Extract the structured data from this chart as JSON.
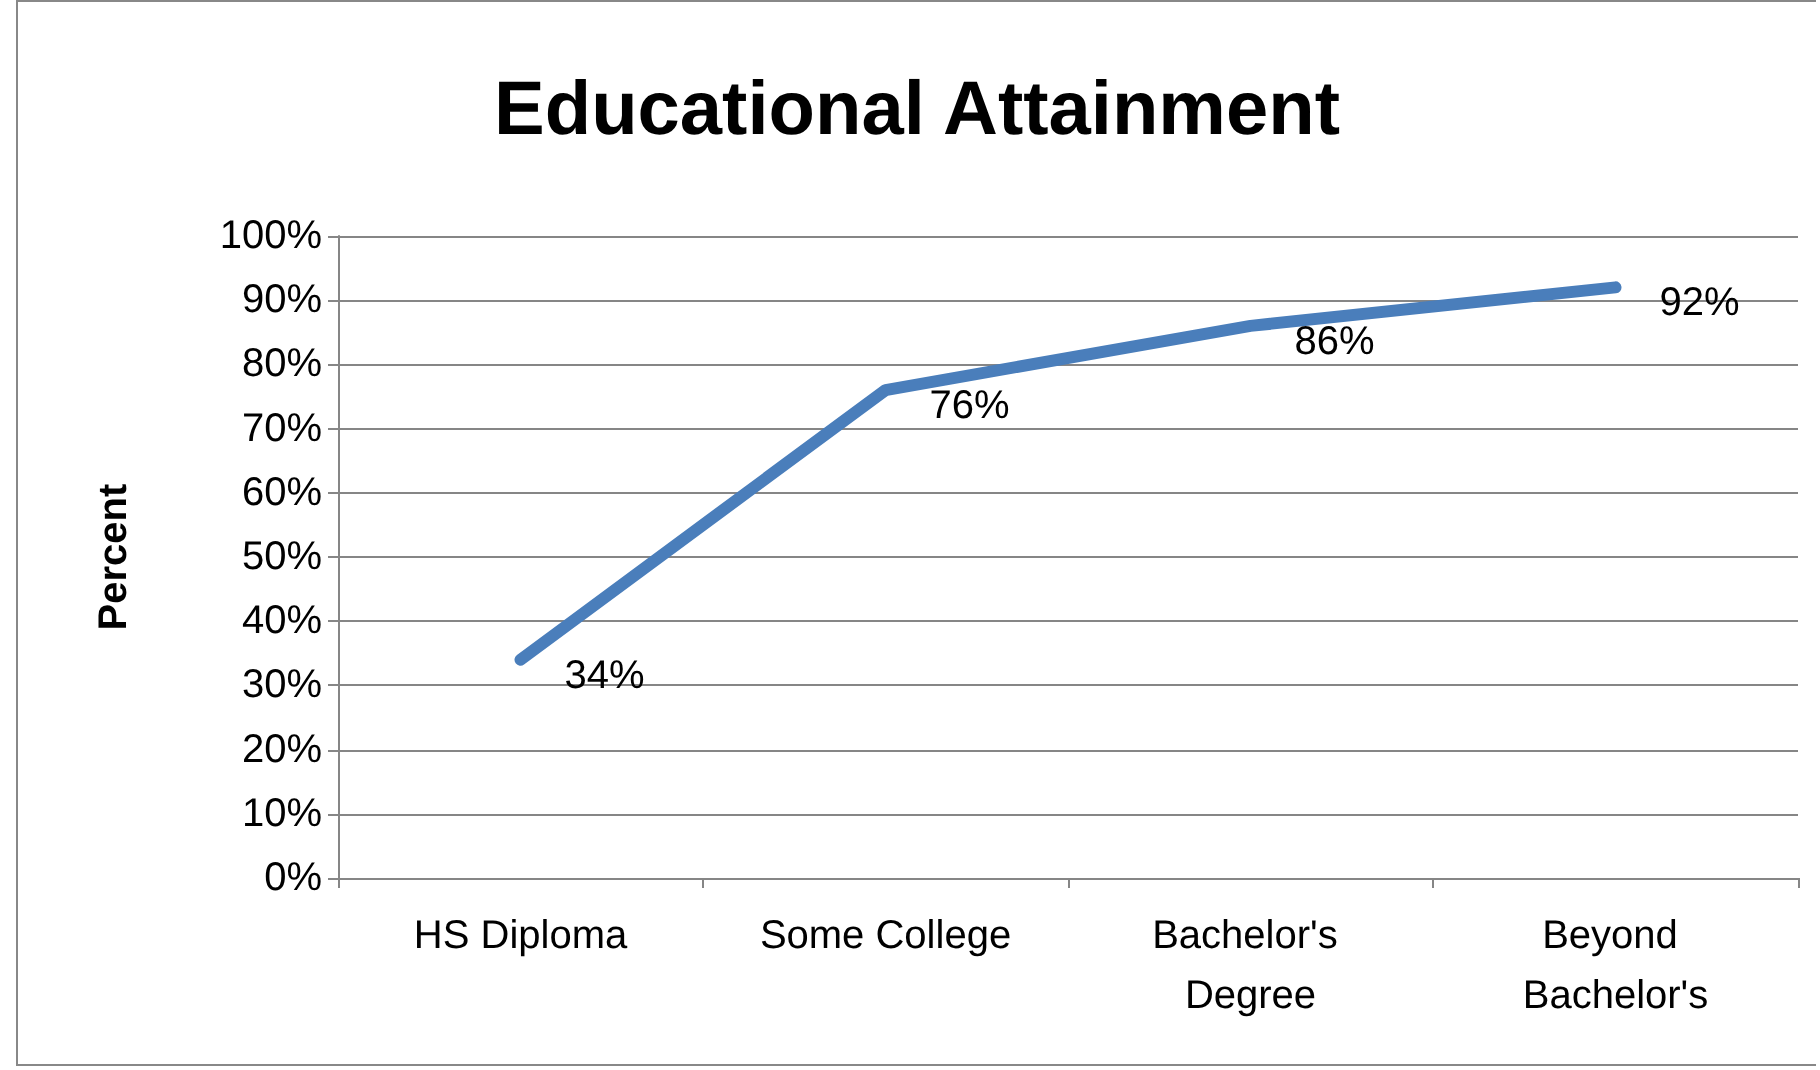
{
  "chart_data": {
    "type": "line",
    "title": "Educational Attainment",
    "ylabel": "Percent",
    "categories": [
      "HS Diploma",
      "Some College",
      "Bachelor's Degree",
      "Beyond Bachelor's"
    ],
    "series": [
      {
        "color": "#4a7ebb",
        "values": [
          34,
          76,
          86,
          92
        ],
        "value_labels": [
          "34%",
          "76%",
          "86%",
          "92%"
        ]
      }
    ],
    "ylim": [
      0,
      100
    ],
    "yticks": [
      {
        "value": 0,
        "label": "0%"
      },
      {
        "value": 10,
        "label": "10%"
      },
      {
        "value": 20,
        "label": "20%"
      },
      {
        "value": 30,
        "label": "30%"
      },
      {
        "value": 40,
        "label": "40%"
      },
      {
        "value": 50,
        "label": "50%"
      },
      {
        "value": 60,
        "label": "60%"
      },
      {
        "value": 70,
        "label": "70%"
      },
      {
        "value": 80,
        "label": "80%"
      },
      {
        "value": 90,
        "label": "90%"
      },
      {
        "value": 100,
        "label": "100%"
      }
    ],
    "grid": "y",
    "marker": "none",
    "line_style": "solid"
  }
}
